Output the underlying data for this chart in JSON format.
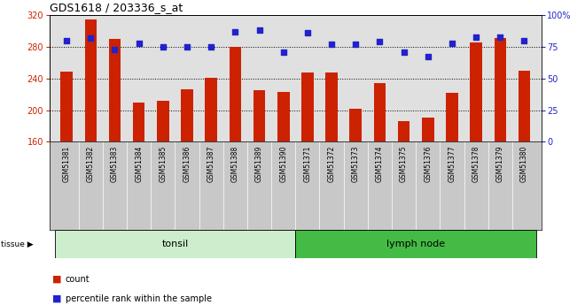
{
  "title": "GDS1618 / 203336_s_at",
  "samples": [
    "GSM51381",
    "GSM51382",
    "GSM51383",
    "GSM51384",
    "GSM51385",
    "GSM51386",
    "GSM51387",
    "GSM51388",
    "GSM51389",
    "GSM51390",
    "GSM51371",
    "GSM51372",
    "GSM51373",
    "GSM51374",
    "GSM51375",
    "GSM51376",
    "GSM51377",
    "GSM51378",
    "GSM51379",
    "GSM51380"
  ],
  "counts": [
    249,
    315,
    290,
    210,
    212,
    226,
    241,
    280,
    225,
    223,
    248,
    248,
    202,
    234,
    186,
    191,
    222,
    286,
    291,
    250
  ],
  "percentiles": [
    80,
    82,
    73,
    78,
    75,
    75,
    75,
    87,
    88,
    71,
    86,
    77,
    77,
    79,
    71,
    67,
    78,
    83,
    83,
    80
  ],
  "tissue_groups": [
    {
      "label": "tonsil",
      "start": 0,
      "end": 10,
      "color": "#cceecc"
    },
    {
      "label": "lymph node",
      "start": 10,
      "end": 20,
      "color": "#44bb44"
    }
  ],
  "ylim_left": [
    160,
    320
  ],
  "ylim_right": [
    0,
    100
  ],
  "yticks_left": [
    160,
    200,
    240,
    280,
    320
  ],
  "yticks_right": [
    0,
    25,
    50,
    75,
    100
  ],
  "hgrid_at": [
    200,
    240,
    280
  ],
  "bar_color": "#cc2200",
  "dot_color": "#2222cc",
  "plot_bg": "#e0e0e0",
  "xtick_bg": "#c8c8c8",
  "legend_count": "count",
  "legend_pct": "percentile rank within the sample"
}
